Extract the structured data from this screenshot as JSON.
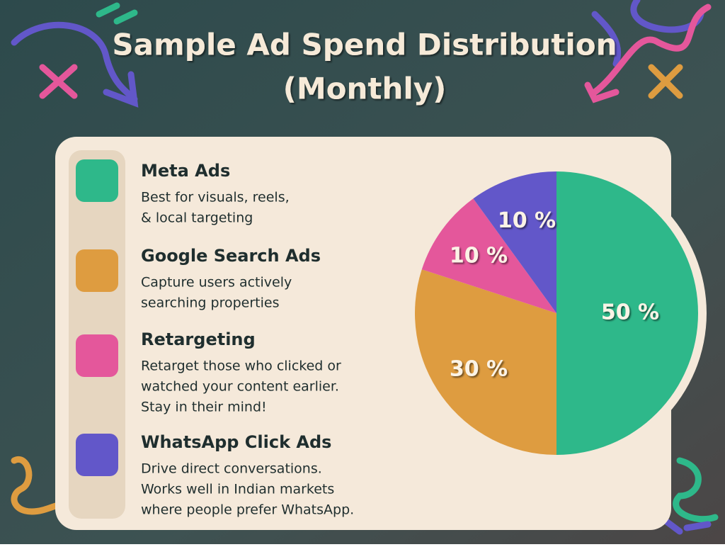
{
  "chart_data": {
    "type": "pie",
    "title": "Sample Ad Spend Distribution",
    "subtitle": "(Monthly)",
    "categories": [
      "Meta Ads",
      "Google Search Ads",
      "Retargeting",
      "WhatsApp Click Ads"
    ],
    "descriptions": [
      [
        "Best for visuals, reels,",
        "& local targeting"
      ],
      [
        "Capture users actively",
        "searching properties"
      ],
      [
        "Retarget those who clicked or",
        "watched your content earlier.",
        "Stay in their mind!"
      ],
      [
        "Drive direct conversations.",
        "Works well in Indian markets",
        "where people prefer WhatsApp."
      ]
    ],
    "values": [
      50,
      30,
      10,
      10
    ],
    "value_labels": [
      "50 %",
      "30 %",
      "10 %",
      "10 %"
    ],
    "colors": [
      "#2eb88a",
      "#de9c40",
      "#e4579b",
      "#6257c9"
    ]
  }
}
